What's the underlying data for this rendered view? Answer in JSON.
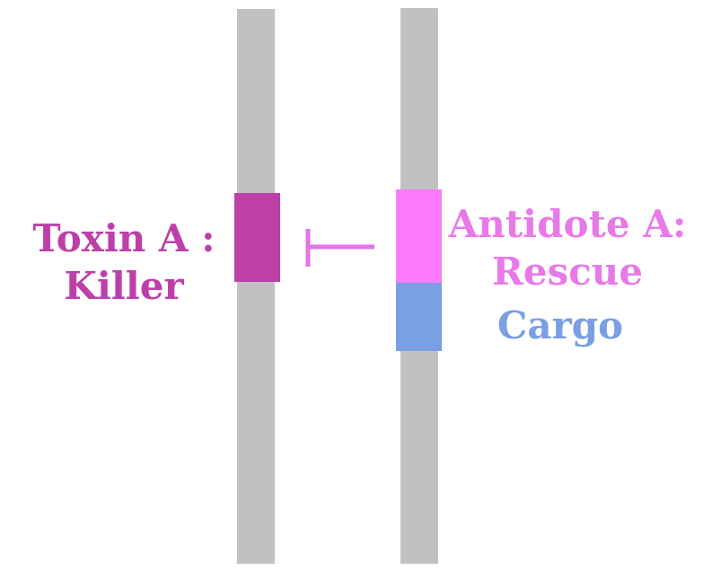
{
  "colors": {
    "chromosome": "#c1c1c1",
    "toxin": "#bd40a9",
    "antidote": "#fb7bfb",
    "cargo": "#7a9fe2",
    "inhibition_arrow": "#e075e6",
    "toxin_text": "#bd40a9",
    "antidote_text": "#e87ae8",
    "cargo_text": "#7a9fe2"
  },
  "labels": {
    "toxin_line1": "Toxin A :",
    "toxin_line2": "Killer",
    "antidote_line1": "Antidote A:",
    "antidote_line2": "Rescue",
    "cargo": "Cargo"
  },
  "relationship": "antidote-inhibits-toxin"
}
